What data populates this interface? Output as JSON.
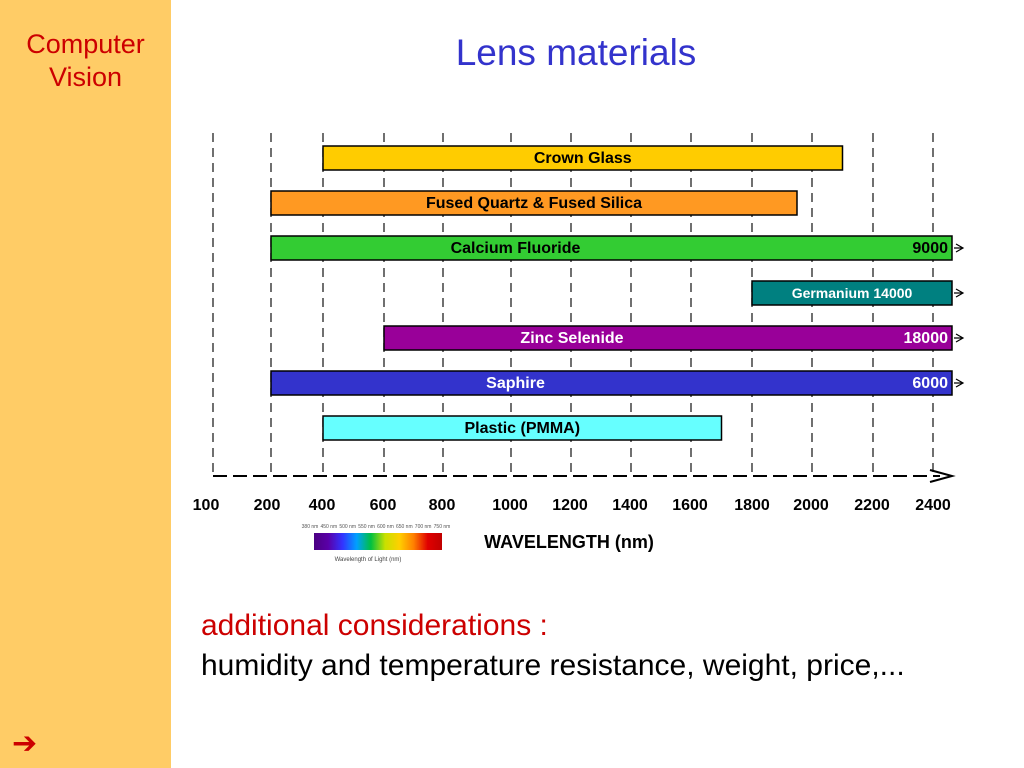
{
  "sidebar": {
    "title_line1": "Computer",
    "title_line2": "Vision",
    "arrow": "➔"
  },
  "page": {
    "title": "Lens materials"
  },
  "notes": {
    "heading": "additional considerations :",
    "text": "humidity and temperature resistance, weight, price,..."
  },
  "spectrum_legend": {
    "caption": "Wavelength of Light (nm)",
    "ticks": [
      "380 nm",
      "450 nm",
      "500 nm",
      "550 nm",
      "600 nm",
      "650 nm",
      "700 nm",
      "750 nm"
    ],
    "colors": [
      "#4b0082",
      "#5a00a8",
      "#3333ff",
      "#00a0ff",
      "#00c040",
      "#c8e000",
      "#ffd000",
      "#ff8000",
      "#e00000",
      "#c00000"
    ]
  },
  "chart_data": {
    "type": "bar",
    "orientation": "horizontal-range",
    "xlabel": "WAVELENGTH (nm)",
    "x_ticks": [
      100,
      200,
      400,
      600,
      800,
      1000,
      1200,
      1400,
      1600,
      1800,
      2000,
      2200,
      2400
    ],
    "grid": "vertical dashed",
    "series": [
      {
        "name": "Crown Glass",
        "start": 400,
        "end": 2100,
        "color": "#ffcc00",
        "text_color": "#000000",
        "extends": false,
        "end_label": ""
      },
      {
        "name": "Fused Quartz & Fused Silica",
        "start": 200,
        "end": 1950,
        "color": "#ff9922",
        "text_color": "#000000",
        "extends": false,
        "end_label": ""
      },
      {
        "name": "Calcium Fluoride",
        "start": 200,
        "end": 9000,
        "color": "#33cc33",
        "text_color": "#000000",
        "extends": true,
        "end_label": "9000"
      },
      {
        "name": "Germanium  14000",
        "start": 1800,
        "end": 14000,
        "color": "#008080",
        "text_color": "#ffffff",
        "extends": true,
        "end_label": ""
      },
      {
        "name": "Zinc Selenide",
        "start": 600,
        "end": 18000,
        "color": "#990099",
        "text_color": "#ffffff",
        "extends": true,
        "end_label": "18000"
      },
      {
        "name": "Saphire",
        "start": 200,
        "end": 6000,
        "color": "#3333cc",
        "text_color": "#ffffff",
        "extends": true,
        "end_label": "6000"
      },
      {
        "name": "Plastic (PMMA)",
        "start": 400,
        "end": 1700,
        "color": "#66ffff",
        "text_color": "#000000",
        "extends": false,
        "end_label": ""
      }
    ]
  }
}
